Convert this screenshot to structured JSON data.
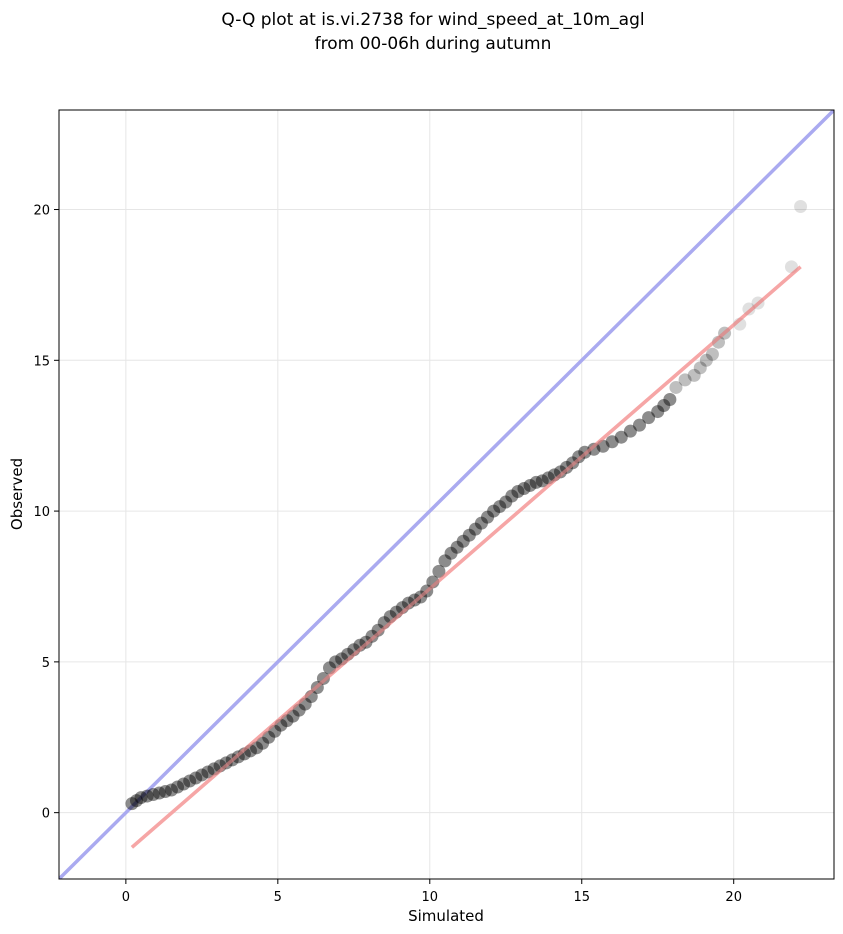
{
  "chart_data": {
    "type": "scatter",
    "title": [
      "Q-Q plot at is.vi.2738 for wind_speed_at_10m_agl",
      "from 00-06h during autumn"
    ],
    "xlabel": "Simulated",
    "ylabel": "Observed",
    "xlim": [
      -2.2,
      23.3
    ],
    "ylim": [
      -2.2,
      23.3
    ],
    "xticks": [
      0,
      5,
      10,
      15,
      20
    ],
    "yticks": [
      0,
      5,
      10,
      15,
      20
    ],
    "grid": true,
    "legend": "none",
    "colors": {
      "points": "#000000",
      "identity_line": "#aaaaf0",
      "fit_line": "#f5a6a6"
    },
    "series": [
      {
        "kind": "points",
        "x": [
          0.2,
          0.35,
          0.5,
          0.7,
          0.9,
          1.1,
          1.3,
          1.5,
          1.7,
          1.9,
          2.1,
          2.3,
          2.5,
          2.7,
          2.9,
          3.1,
          3.3,
          3.5,
          3.7,
          3.9,
          4.1,
          4.3,
          4.5,
          4.7,
          4.9,
          5.1,
          5.3,
          5.5,
          5.7,
          5.9,
          6.1,
          6.3,
          6.5,
          6.7,
          6.9,
          7.1,
          7.3,
          7.5,
          7.7,
          7.9,
          8.1,
          8.3,
          8.5,
          8.7,
          8.9,
          9.1,
          9.3,
          9.5,
          9.7,
          9.9,
          10.1,
          10.3,
          10.5,
          10.7,
          10.9,
          11.1,
          11.3,
          11.5,
          11.7,
          11.9,
          12.1,
          12.3,
          12.5,
          12.7,
          12.9,
          13.1,
          13.3,
          13.5,
          13.7,
          13.9,
          14.1,
          14.3,
          14.5,
          14.7,
          14.9,
          15.1,
          15.4,
          15.7,
          16.0,
          16.3,
          16.6,
          16.9,
          17.2,
          17.5,
          17.7,
          17.9,
          18.1,
          18.4,
          18.7,
          18.9,
          19.1,
          19.3,
          19.5,
          19.7,
          20.2,
          20.5,
          20.8,
          21.9,
          22.2
        ],
        "y": [
          0.3,
          0.4,
          0.5,
          0.55,
          0.6,
          0.65,
          0.7,
          0.75,
          0.85,
          0.95,
          1.05,
          1.15,
          1.25,
          1.35,
          1.45,
          1.55,
          1.65,
          1.75,
          1.85,
          1.95,
          2.05,
          2.15,
          2.3,
          2.5,
          2.7,
          2.9,
          3.05,
          3.2,
          3.4,
          3.6,
          3.85,
          4.15,
          4.45,
          4.8,
          5.0,
          5.1,
          5.25,
          5.4,
          5.55,
          5.65,
          5.85,
          6.05,
          6.3,
          6.5,
          6.65,
          6.8,
          6.95,
          7.05,
          7.15,
          7.35,
          7.65,
          8.0,
          8.35,
          8.6,
          8.8,
          9.0,
          9.2,
          9.4,
          9.6,
          9.8,
          10.0,
          10.15,
          10.3,
          10.5,
          10.65,
          10.75,
          10.85,
          10.95,
          11.0,
          11.1,
          11.2,
          11.3,
          11.45,
          11.6,
          11.8,
          11.95,
          12.05,
          12.15,
          12.3,
          12.45,
          12.65,
          12.85,
          13.1,
          13.3,
          13.5,
          13.7,
          14.1,
          14.35,
          14.5,
          14.75,
          15.0,
          15.2,
          15.6,
          15.9,
          16.2,
          16.7,
          16.9,
          18.1,
          20.1
        ]
      },
      {
        "kind": "line",
        "name": "",
        "x": [
          -2.2,
          23.3
        ],
        "y": [
          -2.2,
          23.3
        ]
      },
      {
        "kind": "line",
        "name": "",
        "x": [
          0.2,
          22.2
        ],
        "y": [
          -1.15,
          18.1
        ]
      }
    ]
  }
}
